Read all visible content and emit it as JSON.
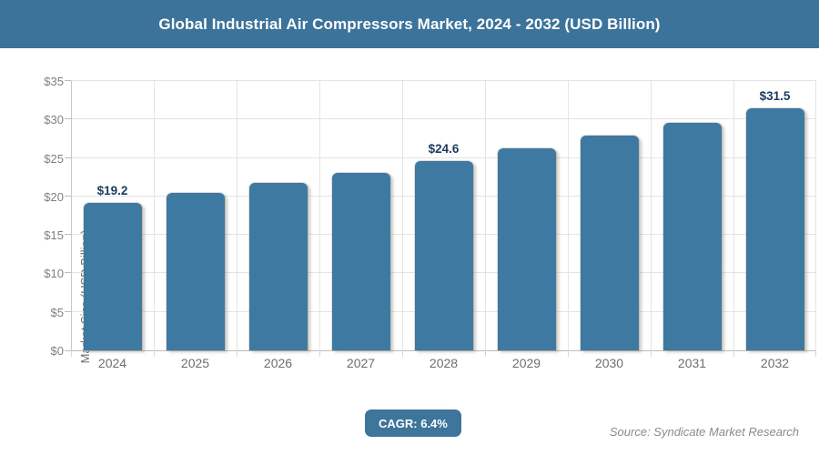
{
  "header": {
    "title": "Global Industrial Air Compressors Market, 2024 - 2032 (USD Billion)"
  },
  "footer": {
    "cagr_label": "CAGR: 6.4%",
    "source": "Source: Syndicate Market Research"
  },
  "chart_data": {
    "type": "bar",
    "title": "Global Industrial Air Compressors Market, 2024 - 2032 (USD Billion)",
    "categories": [
      "2024",
      "2025",
      "2026",
      "2027",
      "2028",
      "2029",
      "2030",
      "2031",
      "2032"
    ],
    "values": [
      19.2,
      20.4,
      21.7,
      23.1,
      24.6,
      26.2,
      27.9,
      29.6,
      31.5
    ],
    "data_labels": [
      "$19.2",
      "",
      "",
      "",
      "$24.6",
      "",
      "",
      "",
      "$31.5"
    ],
    "xlabel": "",
    "ylabel": "Market Size (USD Billion)",
    "ylim": [
      0,
      35
    ],
    "ytick_labels": [
      "$0",
      "$5",
      "$10",
      "$15",
      "$20",
      "$25",
      "$30",
      "$35"
    ],
    "grid": true,
    "legend": "none",
    "bar_color": "#3e79a2",
    "header_color": "#3c739a",
    "data_label_color": "#1e3a5f",
    "cagr_value": "6.4%"
  }
}
